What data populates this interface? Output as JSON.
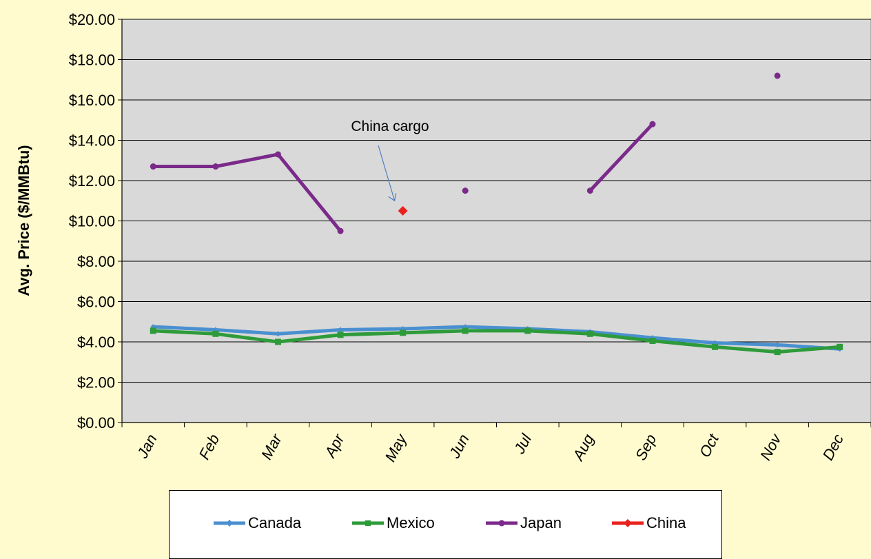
{
  "chart_data": {
    "type": "line",
    "title": "",
    "xlabel": "",
    "ylabel": "Avg. Price ($/MMBtu)",
    "categories": [
      "Jan",
      "Feb",
      "Mar",
      "Apr",
      "May",
      "Jun",
      "Jul",
      "Aug",
      "Sep",
      "Oct",
      "Nov",
      "Dec"
    ],
    "ylim": [
      0,
      20
    ],
    "ytick_labels": [
      "$0.00",
      "$2.00",
      "$4.00",
      "$6.00",
      "$8.00",
      "$10.00",
      "$12.00",
      "$14.00",
      "$16.00",
      "$18.00",
      "$20.00"
    ],
    "grid": "horizontal",
    "legend_position": "bottom",
    "series": [
      {
        "name": "Canada",
        "color": "#4A90D0",
        "marker": "diamond",
        "values": [
          4.75,
          4.6,
          4.4,
          4.6,
          4.65,
          4.75,
          4.65,
          4.5,
          4.2,
          3.95,
          3.85,
          3.65
        ]
      },
      {
        "name": "Mexico",
        "color": "#2E9B3A",
        "marker": "square",
        "values": [
          4.55,
          4.4,
          4.0,
          4.35,
          4.45,
          4.55,
          4.55,
          4.4,
          4.05,
          3.75,
          3.5,
          3.75
        ]
      },
      {
        "name": "Japan",
        "color": "#7B2A8A",
        "marker": "circle",
        "values": [
          12.7,
          12.7,
          13.3,
          9.5,
          null,
          11.5,
          null,
          11.5,
          14.8,
          null,
          17.2,
          null
        ]
      },
      {
        "name": "China",
        "color": "#E8231E",
        "marker": "diamond",
        "values": [
          null,
          null,
          null,
          null,
          10.5,
          null,
          null,
          null,
          null,
          null,
          null,
          null
        ]
      }
    ],
    "annotations": [
      {
        "text": "China cargo",
        "target_category": "May",
        "target_value": 11.0
      }
    ]
  }
}
